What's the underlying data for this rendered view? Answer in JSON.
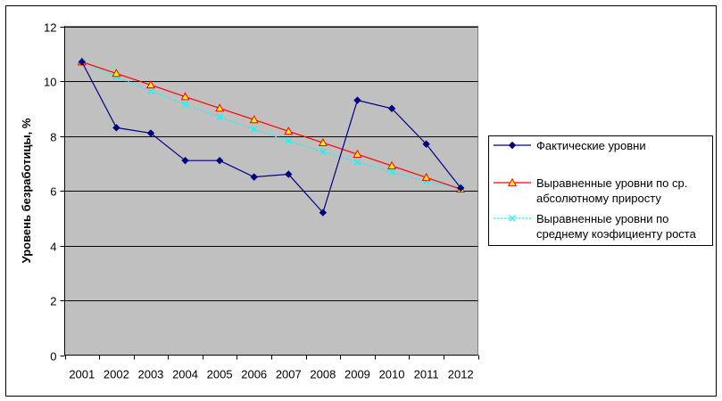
{
  "chart_data": {
    "type": "line",
    "xlabel": "",
    "ylabel": "Уровень безработицы, %",
    "ylim": [
      0,
      12
    ],
    "yticks": [
      0,
      2,
      4,
      6,
      8,
      10,
      12
    ],
    "categories": [
      "2001",
      "2002",
      "2003",
      "2004",
      "2005",
      "2006",
      "2007",
      "2008",
      "2009",
      "2010",
      "2011",
      "2012"
    ],
    "grid": true,
    "legend_position": "right",
    "series": [
      {
        "name": "Фактические уровни",
        "legend_lines": [
          "Фактические уровни"
        ],
        "color": "#000080",
        "marker": "diamond",
        "dash": "solid",
        "values": [
          10.7,
          8.3,
          8.1,
          7.1,
          7.1,
          6.5,
          6.6,
          5.2,
          9.3,
          9.0,
          7.7,
          6.1
        ]
      },
      {
        "name": "Выравненные уровни по ср. абсолютному приросту",
        "legend_lines": [
          "Выравненные уровни по ср.",
          "абсолютному приросту"
        ],
        "color": "#ff0000",
        "marker": "triangle",
        "marker_fill": "#ffff00",
        "dash": "solid",
        "values": [
          10.7,
          10.28,
          9.86,
          9.43,
          9.01,
          8.59,
          8.17,
          7.75,
          7.33,
          6.91,
          6.48,
          6.06
        ]
      },
      {
        "name": "Выравненные уровни по среднему коэфициенту роста",
        "legend_lines": [
          "Выравненные уровни по",
          "среднему коэфициенту роста"
        ],
        "color": "#00ffff",
        "marker": "x",
        "dash": "dotted",
        "values": [
          10.7,
          10.15,
          9.64,
          9.15,
          8.68,
          8.24,
          7.82,
          7.42,
          7.04,
          6.68,
          6.34,
          6.1
        ]
      }
    ]
  }
}
